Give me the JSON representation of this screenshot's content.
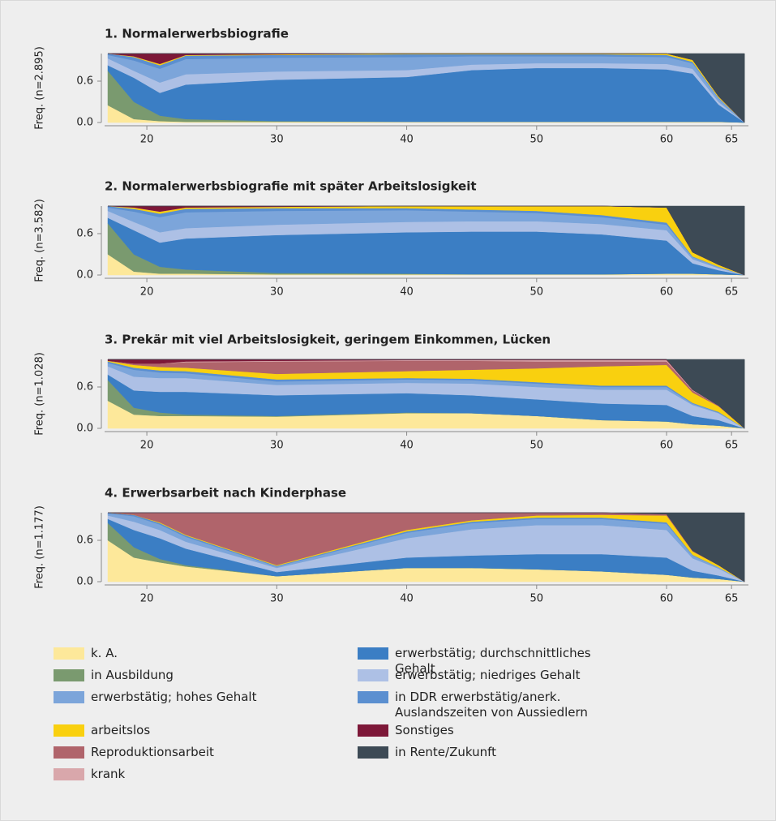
{
  "chart_data": [
    {
      "type": "area",
      "title": "1. Normalerwerbsbiografie",
      "ylabel": "Freq. (n=2.895)",
      "x": [
        17,
        19,
        21,
        23,
        30,
        40,
        45,
        50,
        55,
        60,
        62,
        64,
        66
      ],
      "xlim": [
        16.75,
        66.3
      ],
      "xticks": [
        20,
        30,
        40,
        50,
        60,
        65
      ],
      "ylim": [
        0,
        1
      ],
      "yticks": [
        {
          "value": 0,
          "label": "0.0"
        },
        0.6
      ],
      "series": [
        {
          "name": "k. A.",
          "color": "#fde89a",
          "values": [
            0.25,
            0.05,
            0.02,
            0.01,
            0.01,
            0.01,
            0.01,
            0.01,
            0.01,
            0.01,
            0.01,
            0.01,
            0
          ]
        },
        {
          "name": "in Ausbildung",
          "color": "#7a9a6f",
          "values": [
            0.5,
            0.25,
            0.08,
            0.04,
            0.01,
            0,
            0,
            0,
            0,
            0,
            0,
            0,
            0
          ]
        },
        {
          "name": "erwerbstätig; durchschnittliches Gehalt",
          "color": "#3b7ec4",
          "values": [
            0.08,
            0.35,
            0.33,
            0.5,
            0.6,
            0.65,
            0.75,
            0.78,
            0.78,
            0.76,
            0.7,
            0.25,
            0
          ]
        },
        {
          "name": "erwerbstätig; niedriges Gehalt",
          "color": "#adc0e5",
          "values": [
            0.1,
            0.1,
            0.15,
            0.15,
            0.12,
            0.1,
            0.08,
            0.07,
            0.07,
            0.08,
            0.07,
            0.04,
            0
          ]
        },
        {
          "name": "erwerbstätig; hohes Gehalt",
          "color": "#7ca5da",
          "values": [
            0.05,
            0.15,
            0.2,
            0.22,
            0.2,
            0.19,
            0.12,
            0.1,
            0.1,
            0.1,
            0.08,
            0.05,
            0
          ]
        },
        {
          "name": "in DDR erwerbstätig/anerk. Auslandszeiten von Aussiedlern",
          "color": "#5b8fd0",
          "values": [
            0.02,
            0.05,
            0.05,
            0.05,
            0.04,
            0.04,
            0.03,
            0.03,
            0.03,
            0.03,
            0.02,
            0.01,
            0
          ]
        },
        {
          "name": "arbeitslos",
          "color": "#f9d00f",
          "values": [
            0,
            0.01,
            0.02,
            0.01,
            0.01,
            0.01,
            0.01,
            0.01,
            0.01,
            0.02,
            0.03,
            0.02,
            0
          ]
        },
        {
          "name": "Reproduktionsarbeit",
          "color": "#b0646b",
          "values": [
            0,
            0,
            0,
            0,
            0,
            0,
            0,
            0,
            0,
            0,
            0,
            0,
            0
          ]
        },
        {
          "name": "krank",
          "color": "#d9a7ab",
          "values": [
            0,
            0,
            0,
            0,
            0,
            0,
            0,
            0,
            0,
            0,
            0,
            0,
            0
          ]
        },
        {
          "name": "Sonstiges",
          "color": "#7d1838",
          "values": [
            0,
            0.04,
            0.15,
            0.02,
            0.01,
            0,
            0,
            0,
            0,
            0,
            0,
            0,
            0
          ]
        },
        {
          "name": "in Rente/Zukunft",
          "color": "#3d4a55",
          "values": [
            0,
            0,
            0,
            0,
            0,
            0,
            0,
            0,
            0,
            0,
            0.09,
            0.62,
            1
          ]
        }
      ]
    },
    {
      "type": "area",
      "title": "2. Normalerwerbsbiografie mit später Arbeitslosigkeit",
      "ylabel": "Freq. (n=3.582)",
      "x": [
        17,
        19,
        21,
        23,
        30,
        40,
        45,
        50,
        55,
        60,
        62,
        64,
        66
      ],
      "xlim": [
        16.75,
        66.3
      ],
      "xticks": [
        20,
        30,
        40,
        50,
        60,
        65
      ],
      "ylim": [
        0,
        1
      ],
      "yticks": [
        {
          "value": 0,
          "label": "0.0"
        },
        0.6
      ],
      "series": [
        {
          "name": "k. A.",
          "color": "#fde89a",
          "values": [
            0.3,
            0.05,
            0.02,
            0.02,
            0.01,
            0.01,
            0.01,
            0.01,
            0.01,
            0.02,
            0.02,
            0.01,
            0
          ]
        },
        {
          "name": "in Ausbildung",
          "color": "#7a9a6f",
          "values": [
            0.45,
            0.25,
            0.1,
            0.06,
            0.02,
            0.01,
            0,
            0,
            0,
            0,
            0,
            0,
            0
          ]
        },
        {
          "name": "erwerbstätig; durchschnittliches Gehalt",
          "color": "#3b7ec4",
          "values": [
            0.08,
            0.35,
            0.35,
            0.45,
            0.55,
            0.6,
            0.62,
            0.62,
            0.58,
            0.48,
            0.15,
            0.06,
            0
          ]
        },
        {
          "name": "erwerbstätig; niedriges Gehalt",
          "color": "#adc0e5",
          "values": [
            0.1,
            0.12,
            0.15,
            0.15,
            0.15,
            0.15,
            0.15,
            0.15,
            0.15,
            0.15,
            0.06,
            0.03,
            0
          ]
        },
        {
          "name": "erwerbstätig; hohes Gehalt",
          "color": "#7ca5da",
          "values": [
            0.05,
            0.15,
            0.22,
            0.23,
            0.2,
            0.17,
            0.14,
            0.12,
            0.1,
            0.08,
            0.03,
            0.02,
            0
          ]
        },
        {
          "name": "in DDR erwerbstätig/anerk. Auslandszeiten von Aussiedlern",
          "color": "#5b8fd0",
          "values": [
            0.02,
            0.04,
            0.05,
            0.05,
            0.04,
            0.03,
            0.03,
            0.03,
            0.03,
            0.03,
            0.01,
            0,
            0
          ]
        },
        {
          "name": "arbeitslos",
          "color": "#f9d00f",
          "values": [
            0,
            0.02,
            0.03,
            0.02,
            0.02,
            0.03,
            0.05,
            0.07,
            0.13,
            0.22,
            0.06,
            0.03,
            0
          ]
        },
        {
          "name": "Reproduktionsarbeit",
          "color": "#b0646b",
          "values": [
            0,
            0,
            0,
            0,
            0,
            0,
            0,
            0,
            0,
            0,
            0,
            0,
            0
          ]
        },
        {
          "name": "krank",
          "color": "#d9a7ab",
          "values": [
            0,
            0,
            0,
            0,
            0,
            0,
            0,
            0,
            0,
            0,
            0,
            0,
            0
          ]
        },
        {
          "name": "Sonstiges",
          "color": "#7d1838",
          "values": [
            0,
            0.02,
            0.08,
            0.02,
            0.01,
            0,
            0,
            0,
            0,
            0,
            0,
            0,
            0
          ]
        },
        {
          "name": "in Rente/Zukunft",
          "color": "#3d4a55",
          "values": [
            0,
            0,
            0,
            0,
            0,
            0,
            0,
            0,
            0,
            0.02,
            0.67,
            0.85,
            1
          ]
        }
      ]
    },
    {
      "type": "area",
      "title": "3. Prekär mit viel Arbeitslosigkeit, geringem Einkommen, Lücken",
      "ylabel": "Freq. (n=1.028)",
      "x": [
        17,
        19,
        21,
        23,
        30,
        40,
        45,
        50,
        55,
        60,
        62,
        64,
        66
      ],
      "xlim": [
        16.75,
        66.3
      ],
      "xticks": [
        20,
        30,
        40,
        50,
        60,
        65
      ],
      "ylim": [
        0,
        1
      ],
      "yticks": [
        {
          "value": 0,
          "label": "0.0"
        },
        0.6
      ],
      "series": [
        {
          "name": "k. A.",
          "color": "#fde89a",
          "values": [
            0.4,
            0.2,
            0.18,
            0.18,
            0.17,
            0.22,
            0.22,
            0.18,
            0.12,
            0.1,
            0.06,
            0.04,
            0
          ]
        },
        {
          "name": "in Ausbildung",
          "color": "#7a9a6f",
          "values": [
            0.3,
            0.1,
            0.05,
            0.02,
            0.01,
            0.01,
            0,
            0,
            0,
            0,
            0,
            0,
            0
          ]
        },
        {
          "name": "erwerbstätig; durchschnittliches Gehalt",
          "color": "#3b7ec4",
          "values": [
            0.08,
            0.25,
            0.3,
            0.33,
            0.3,
            0.28,
            0.26,
            0.24,
            0.24,
            0.24,
            0.12,
            0.08,
            0
          ]
        },
        {
          "name": "erwerbstätig; niedriges Gehalt",
          "color": "#adc0e5",
          "values": [
            0.12,
            0.2,
            0.2,
            0.2,
            0.15,
            0.15,
            0.17,
            0.18,
            0.2,
            0.22,
            0.16,
            0.1,
            0
          ]
        },
        {
          "name": "erwerbstätig; hohes Gehalt",
          "color": "#7ca5da",
          "values": [
            0.05,
            0.1,
            0.08,
            0.07,
            0.05,
            0.05,
            0.05,
            0.05,
            0.04,
            0.04,
            0.02,
            0.01,
            0
          ]
        },
        {
          "name": "in DDR erwerbstätig/anerk. Auslandszeiten von Aussiedlern",
          "color": "#5b8fd0",
          "values": [
            0.02,
            0.03,
            0.03,
            0.03,
            0.03,
            0.02,
            0.02,
            0.02,
            0.02,
            0.02,
            0.01,
            0.01,
            0
          ]
        },
        {
          "name": "arbeitslos",
          "color": "#f9d00f",
          "values": [
            0.01,
            0.04,
            0.05,
            0.05,
            0.08,
            0.1,
            0.13,
            0.2,
            0.28,
            0.3,
            0.15,
            0.08,
            0
          ]
        },
        {
          "name": "Reproduktionsarbeit",
          "color": "#b0646b",
          "values": [
            0,
            0.02,
            0.05,
            0.08,
            0.18,
            0.15,
            0.13,
            0.1,
            0.07,
            0.05,
            0.03,
            0.01,
            0
          ]
        },
        {
          "name": "krank",
          "color": "#d9a7ab",
          "values": [
            0,
            0,
            0,
            0.01,
            0.01,
            0.01,
            0.01,
            0.02,
            0.02,
            0.02,
            0.01,
            0,
            0
          ]
        },
        {
          "name": "Sonstiges",
          "color": "#7d1838",
          "values": [
            0.02,
            0.06,
            0.06,
            0.03,
            0.02,
            0.01,
            0.01,
            0.01,
            0.01,
            0.01,
            0,
            0,
            0
          ]
        },
        {
          "name": "in Rente/Zukunft",
          "color": "#3d4a55",
          "values": [
            0,
            0,
            0,
            0,
            0,
            0,
            0,
            0,
            0,
            0,
            0.44,
            0.67,
            1
          ]
        }
      ]
    },
    {
      "type": "area",
      "title": "4. Erwerbsarbeit nach Kinderphase",
      "ylabel": "Freq. (n=1.177)",
      "x": [
        17,
        19,
        21,
        23,
        30,
        40,
        45,
        50,
        55,
        60,
        62,
        64,
        66
      ],
      "xlim": [
        16.75,
        66.3
      ],
      "xticks": [
        20,
        30,
        40,
        50,
        60,
        65
      ],
      "ylim": [
        0,
        1
      ],
      "yticks": [
        {
          "value": 0,
          "label": "0.0"
        },
        0.6
      ],
      "series": [
        {
          "name": "k. A.",
          "color": "#fde89a",
          "values": [
            0.6,
            0.35,
            0.28,
            0.22,
            0.08,
            0.2,
            0.2,
            0.18,
            0.15,
            0.1,
            0.06,
            0.04,
            0
          ]
        },
        {
          "name": "in Ausbildung",
          "color": "#7a9a6f",
          "values": [
            0.25,
            0.15,
            0.05,
            0.02,
            0,
            0,
            0,
            0,
            0,
            0,
            0,
            0,
            0
          ]
        },
        {
          "name": "erwerbstätig; durchschnittliches Gehalt",
          "color": "#3b7ec4",
          "values": [
            0.06,
            0.25,
            0.3,
            0.24,
            0.06,
            0.15,
            0.18,
            0.22,
            0.25,
            0.25,
            0.1,
            0.05,
            0
          ]
        },
        {
          "name": "erwerbstätig; niedriges Gehalt",
          "color": "#adc0e5",
          "values": [
            0.05,
            0.12,
            0.12,
            0.1,
            0.06,
            0.28,
            0.38,
            0.42,
            0.42,
            0.4,
            0.18,
            0.1,
            0
          ]
        },
        {
          "name": "erwerbstätig; hohes Gehalt",
          "color": "#7ca5da",
          "values": [
            0.03,
            0.08,
            0.08,
            0.07,
            0.02,
            0.08,
            0.09,
            0.09,
            0.09,
            0.09,
            0.04,
            0.02,
            0
          ]
        },
        {
          "name": "in DDR erwerbstätig/anerk. Auslandszeiten von Aussiedlern",
          "color": "#5b8fd0",
          "values": [
            0.01,
            0.02,
            0.02,
            0.02,
            0.01,
            0.02,
            0.02,
            0.02,
            0.02,
            0.02,
            0.01,
            0,
            0
          ]
        },
        {
          "name": "arbeitslos",
          "color": "#f9d00f",
          "values": [
            0,
            0,
            0.01,
            0.01,
            0.01,
            0.02,
            0.02,
            0.03,
            0.04,
            0.1,
            0.05,
            0.03,
            0
          ]
        },
        {
          "name": "Reproduktionsarbeit",
          "color": "#b0646b",
          "values": [
            0,
            0.03,
            0.14,
            0.32,
            0.76,
            0.25,
            0.11,
            0.04,
            0.03,
            0.02,
            0.01,
            0,
            0
          ]
        },
        {
          "name": "krank",
          "color": "#d9a7ab",
          "values": [
            0,
            0,
            0,
            0,
            0,
            0,
            0,
            0,
            0,
            0,
            0,
            0,
            0
          ]
        },
        {
          "name": "Sonstiges",
          "color": "#7d1838",
          "values": [
            0,
            0,
            0,
            0,
            0,
            0,
            0,
            0,
            0,
            0,
            0,
            0,
            0
          ]
        },
        {
          "name": "in Rente/Zukunft",
          "color": "#3d4a55",
          "values": [
            0,
            0,
            0,
            0,
            0,
            0,
            0,
            0,
            0,
            0.02,
            0.55,
            0.76,
            1
          ]
        }
      ]
    }
  ]
}
